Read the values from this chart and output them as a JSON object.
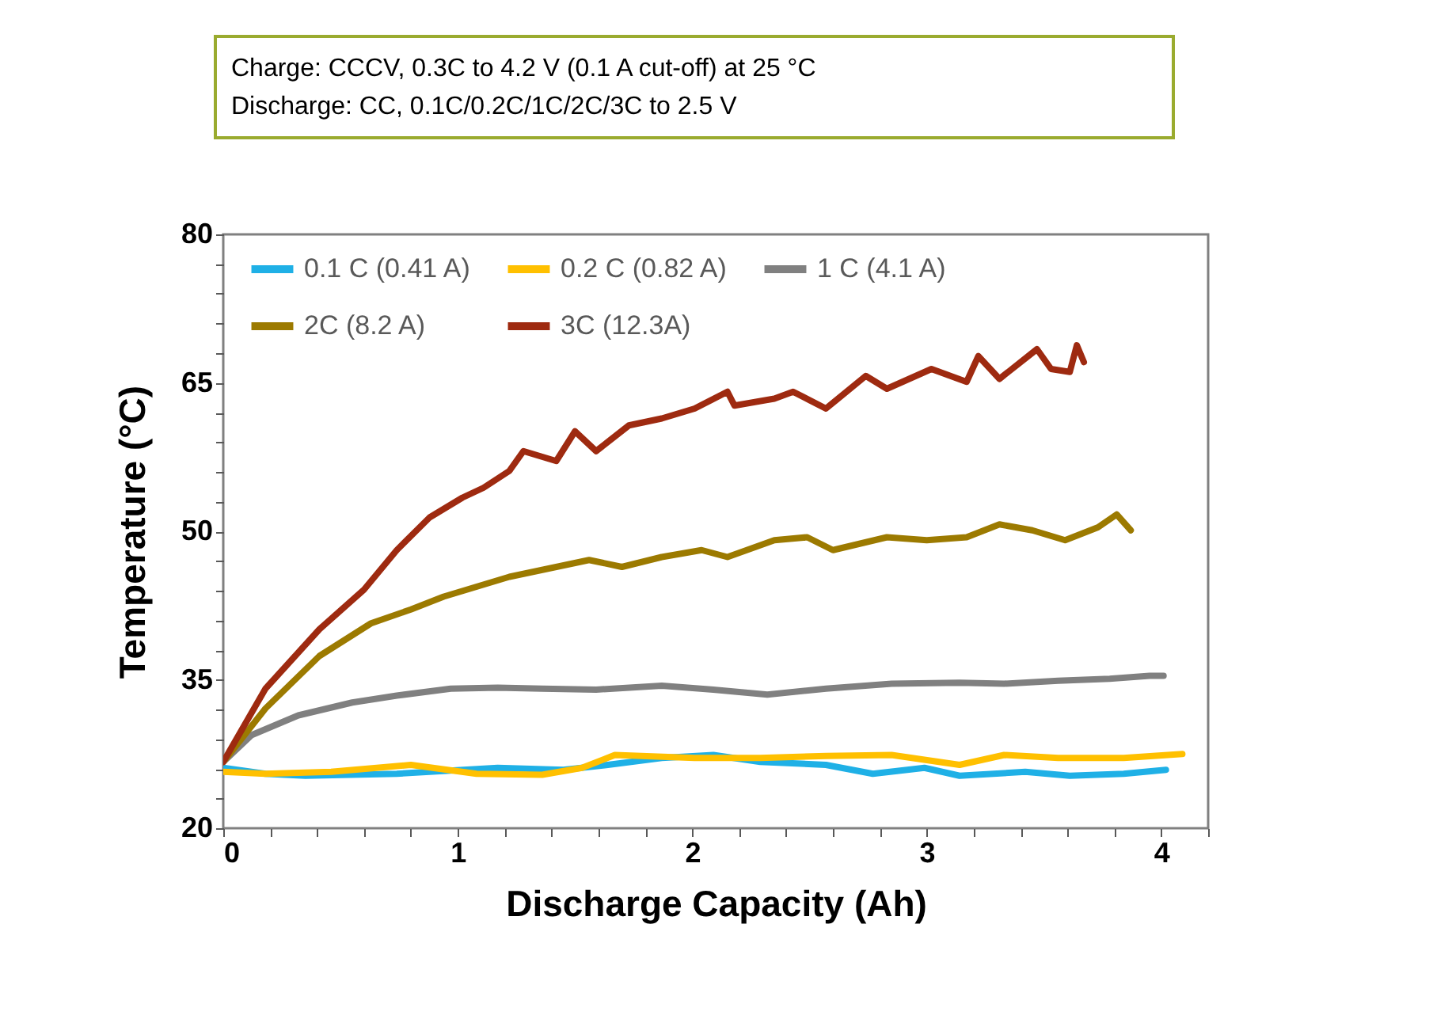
{
  "chart_data": {
    "type": "line",
    "xlabel": "Discharge Capacity (Ah)",
    "ylabel": "Temperature (°C)",
    "annotations": [
      "Charge: CCCV, 0.3C to 4.2 V (0.1 A cut-off) at 25 °C",
      "Discharge: CC, 0.1C/0.2C/1C/2C/3C to 2.5 V"
    ],
    "xlim": [
      0,
      4.2
    ],
    "ylim": [
      20,
      80
    ],
    "xticks": [
      0,
      {
        "value": 0.2,
        "label": null
      },
      {
        "value": 0.4,
        "label": null
      },
      {
        "value": 0.6,
        "label": null
      },
      {
        "value": 0.8,
        "label": null
      },
      1,
      {
        "value": 1.2,
        "label": null
      },
      {
        "value": 1.4,
        "label": null
      },
      {
        "value": 1.6,
        "label": null
      },
      {
        "value": 1.8,
        "label": null
      },
      2,
      {
        "value": 2.2,
        "label": null
      },
      {
        "value": 2.4,
        "label": null
      },
      {
        "value": 2.6,
        "label": null
      },
      {
        "value": 2.8,
        "label": null
      },
      3,
      {
        "value": 3.2,
        "label": null
      },
      {
        "value": 3.4,
        "label": null
      },
      {
        "value": 3.6,
        "label": null
      },
      {
        "value": 3.8,
        "label": null
      },
      4,
      {
        "value": 4.2,
        "label": null
      }
    ],
    "yticks": [
      20,
      {
        "value": 23,
        "label": null
      },
      {
        "value": 26,
        "label": null
      },
      {
        "value": 29,
        "label": null
      },
      {
        "value": 32,
        "label": null
      },
      35,
      {
        "value": 38,
        "label": null
      },
      {
        "value": 41,
        "label": null
      },
      {
        "value": 44,
        "label": null
      },
      {
        "value": 47,
        "label": null
      },
      50,
      {
        "value": 53,
        "label": null
      },
      {
        "value": 56,
        "label": null
      },
      {
        "value": 59,
        "label": null
      },
      {
        "value": 62,
        "label": null
      },
      65,
      {
        "value": 68,
        "label": null
      },
      {
        "value": 71,
        "label": null
      },
      {
        "value": 74,
        "label": null
      },
      {
        "value": 77,
        "label": null
      },
      80
    ],
    "legend": "top",
    "line_style": "solid",
    "series": [
      {
        "name": "0.1 C (0.41 A)",
        "color": "#1fb0e6",
        "x": [
          0,
          0.18,
          0.35,
          0.74,
          1.17,
          1.45,
          1.64,
          1.87,
          2.09,
          2.29,
          2.57,
          2.77,
          2.99,
          3.14,
          3.42,
          3.61,
          3.84,
          4.02
        ],
        "values": [
          26.1,
          25.5,
          25.3,
          25.5,
          26.1,
          25.9,
          26.4,
          27.1,
          27.4,
          26.7,
          26.4,
          25.5,
          26.1,
          25.3,
          25.7,
          25.3,
          25.5,
          25.9
        ]
      },
      {
        "name": "0.2 C (0.82 A)",
        "color": "#ffc000",
        "x": [
          0,
          0.18,
          0.46,
          0.8,
          1.08,
          1.36,
          1.53,
          1.67,
          2.01,
          2.29,
          2.57,
          2.85,
          3.14,
          3.33,
          3.56,
          3.84,
          4.09
        ],
        "values": [
          25.7,
          25.5,
          25.7,
          26.4,
          25.5,
          25.4,
          26.1,
          27.4,
          27.1,
          27.1,
          27.3,
          27.4,
          26.4,
          27.4,
          27.1,
          27.1,
          27.5
        ]
      },
      {
        "name": "1 C (4.1 A)",
        "color": "#808080",
        "x": [
          0,
          0.12,
          0.32,
          0.55,
          0.74,
          0.97,
          1.17,
          1.36,
          1.59,
          1.87,
          2.09,
          2.32,
          2.57,
          2.85,
          3.14,
          3.33,
          3.56,
          3.78,
          3.95,
          4.01
        ],
        "values": [
          26.7,
          29.4,
          31.4,
          32.7,
          33.4,
          34.1,
          34.2,
          34.1,
          34.0,
          34.4,
          34.0,
          33.5,
          34.1,
          34.6,
          34.7,
          34.6,
          34.9,
          35.1,
          35.4,
          35.4
        ]
      },
      {
        "name": "2C (8.2 A)",
        "color": "#9c7a00",
        "x": [
          0,
          0.18,
          0.41,
          0.63,
          0.8,
          0.94,
          1.08,
          1.22,
          1.36,
          1.56,
          1.7,
          1.87,
          2.04,
          2.15,
          2.35,
          2.49,
          2.6,
          2.83,
          3.0,
          3.17,
          3.31,
          3.45,
          3.59,
          3.73,
          3.81,
          3.87
        ],
        "values": [
          26.7,
          32.1,
          37.4,
          40.7,
          42.1,
          43.4,
          44.4,
          45.4,
          46.1,
          47.1,
          46.4,
          47.4,
          48.1,
          47.4,
          49.1,
          49.4,
          48.1,
          49.4,
          49.1,
          49.4,
          50.7,
          50.1,
          49.1,
          50.4,
          51.7,
          50.1
        ]
      },
      {
        "name": "3C (12.3A)",
        "color": "#9e2a10",
        "x": [
          0,
          0.18,
          0.41,
          0.6,
          0.74,
          0.88,
          1.02,
          1.11,
          1.22,
          1.28,
          1.42,
          1.5,
          1.59,
          1.73,
          1.87,
          2.01,
          2.15,
          2.18,
          2.35,
          2.43,
          2.57,
          2.74,
          2.83,
          3.02,
          3.17,
          3.22,
          3.31,
          3.47,
          3.53,
          3.61,
          3.64,
          3.67
        ],
        "values": [
          26.7,
          34.1,
          40.1,
          44.1,
          48.1,
          51.4,
          53.4,
          54.4,
          56.1,
          58.1,
          57.1,
          60.1,
          58.1,
          60.7,
          61.4,
          62.4,
          64.1,
          62.7,
          63.4,
          64.1,
          62.4,
          65.7,
          64.4,
          66.4,
          65.1,
          67.7,
          65.4,
          68.4,
          66.4,
          66.1,
          68.8,
          67.1
        ]
      }
    ]
  }
}
